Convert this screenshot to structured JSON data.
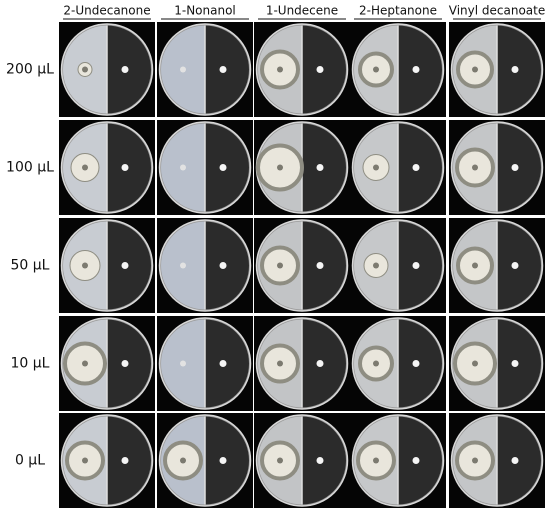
{
  "columns": [
    "2-Undecanone",
    "1-Nonanol",
    "1-Undecene",
    "2-Heptanone",
    "Vinyl decanoate"
  ],
  "rows": [
    "200 μL",
    "100 μL",
    "50 μL",
    "10 μL",
    "0 μL"
  ]
}
